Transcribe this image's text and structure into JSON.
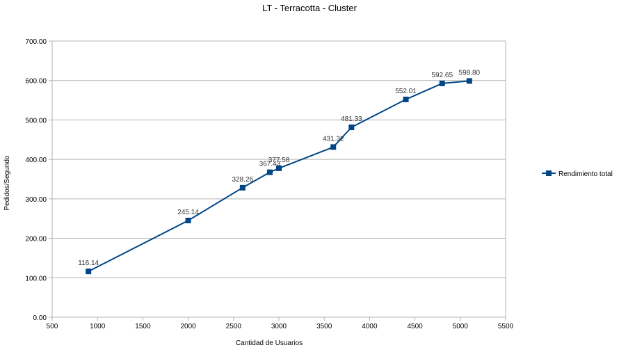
{
  "chart_data": {
    "type": "line",
    "title": "LT - Terracotta - Cluster",
    "xlabel": "Cantidad de Usuarios",
    "ylabel": "Pedidos/Segundo",
    "xlim": [
      500,
      5500
    ],
    "ylim": [
      0,
      700
    ],
    "x_ticks": [
      "500",
      "1000",
      "1500",
      "2000",
      "2500",
      "3000",
      "3500",
      "4000",
      "4500",
      "5000",
      "5500"
    ],
    "y_ticks": [
      "0.00",
      "100.00",
      "200.00",
      "300.00",
      "400.00",
      "500.00",
      "600.00",
      "700.00"
    ],
    "grid": "horizontal",
    "legend_position": "right",
    "series": [
      {
        "name": "Rendimiento total",
        "color": "#004586",
        "marker": "square",
        "points": [
          {
            "x": 900,
            "y": 116.14,
            "label": "116.14"
          },
          {
            "x": 2000,
            "y": 245.14,
            "label": "245.14"
          },
          {
            "x": 2600,
            "y": 328.26,
            "label": "328.26"
          },
          {
            "x": 2900,
            "y": 367.43,
            "label": "367.43"
          },
          {
            "x": 3000,
            "y": 377.58,
            "label": "377.58"
          },
          {
            "x": 3600,
            "y": 431.32,
            "label": "431.32"
          },
          {
            "x": 3800,
            "y": 481.33,
            "label": "481.33"
          },
          {
            "x": 4400,
            "y": 552.01,
            "label": "552.01"
          },
          {
            "x": 4800,
            "y": 592.65,
            "label": "592.65"
          },
          {
            "x": 5100,
            "y": 598.8,
            "label": "598.80"
          }
        ]
      }
    ]
  }
}
